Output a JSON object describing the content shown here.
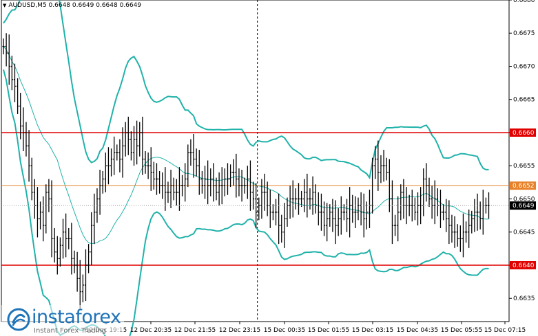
{
  "header": {
    "symbol_text": "AUDUSD,M5",
    "ohlc_text": "0.6648 0.6649 0.6648 0.6649"
  },
  "watermark": {
    "brand": "instaforex",
    "tagline": "Instant Forex Trading"
  },
  "colors": {
    "candle": "#000000",
    "bollinger": "#20b2aa",
    "support_resistance": "#e00000",
    "pivot": "#e8822a",
    "current_price_tag": "#000000",
    "grid_separator": "#000000"
  },
  "chart_data": {
    "type": "candlestick",
    "symbol": "AUDUSD",
    "timeframe": "M5",
    "ylim": [
      0.66315,
      0.668
    ],
    "y_ticks": [
      "0.6680",
      "0.6675",
      "0.6670",
      "0.6665",
      "0.6660",
      "0.6655",
      "0.6650",
      "0.6645",
      "0.6640",
      "0.6635"
    ],
    "x_ticks": [
      "12 Dec 19:15",
      "12 Dec 20:35",
      "12 Dec 21:55",
      "12 Dec 23:15",
      "15 Dec 00:35",
      "15 Dec 01:55",
      "15 Dec 03:15",
      "15 Dec 04:35",
      "15 Dec 05:55",
      "15 Dec 07:15"
    ],
    "levels": [
      {
        "value": 0.666,
        "label": "0.6660",
        "color": "#e00000"
      },
      {
        "value": 0.6652,
        "label": "0.6652",
        "color": "#e8822a"
      },
      {
        "value": 0.664,
        "label": "0.6640",
        "color": "#e00000"
      }
    ],
    "current_price": {
      "value": 0.6649,
      "label": "0.6649"
    },
    "session_break_bar": 89,
    "closes": [
      0.6673,
      0.6672,
      0.667,
      0.6668,
      0.6667,
      0.6664,
      0.6661,
      0.666,
      0.6658,
      0.6655,
      0.6651,
      0.6649,
      0.6647,
      0.6648,
      0.6646,
      0.6651,
      0.665,
      0.6644,
      0.6642,
      0.6641,
      0.6643,
      0.6645,
      0.6644,
      0.6644,
      0.6641,
      0.664,
      0.6638,
      0.6636,
      0.6637,
      0.664,
      0.6642,
      0.6646,
      0.6648,
      0.665,
      0.6652,
      0.6653,
      0.6655,
      0.6655,
      0.6656,
      0.6657,
      0.6657,
      0.6656,
      0.6658,
      0.666,
      0.6659,
      0.6657,
      0.6659,
      0.6658,
      0.666,
      0.6656,
      0.6655,
      0.6655,
      0.6654,
      0.6653,
      0.6653,
      0.6652,
      0.6652,
      0.6651,
      0.6651,
      0.6652,
      0.6651,
      0.6651,
      0.6652,
      0.6652,
      0.6653,
      0.6657,
      0.6657,
      0.6656,
      0.6655,
      0.6653,
      0.6652,
      0.6653,
      0.6652,
      0.6653,
      0.6652,
      0.6651,
      0.6652,
      0.6652,
      0.6653,
      0.6653,
      0.6654,
      0.6654,
      0.6653,
      0.6652,
      0.6652,
      0.6652,
      0.6653,
      0.6651,
      0.665,
      0.6648,
      0.6649,
      0.6651,
      0.6651,
      0.6649,
      0.6648,
      0.6648,
      0.6648,
      0.6646,
      0.6645,
      0.6647,
      0.6649,
      0.665,
      0.665,
      0.665,
      0.665,
      0.665,
      0.6651,
      0.665,
      0.665,
      0.6651,
      0.6649,
      0.6648,
      0.6648,
      0.6646,
      0.6647,
      0.6648,
      0.6647,
      0.6646,
      0.6647,
      0.6648,
      0.6648,
      0.6647,
      0.6649,
      0.6648,
      0.6648,
      0.6649,
      0.6648,
      0.6647,
      0.6648,
      0.6649,
      0.6655,
      0.6656,
      0.6654,
      0.6655,
      0.6655,
      0.6654,
      0.665,
      0.6646,
      0.6646,
      0.6648,
      0.6651,
      0.6649,
      0.6649,
      0.6649,
      0.6649,
      0.6648,
      0.6649,
      0.6649,
      0.6653,
      0.6652,
      0.665,
      0.6649,
      0.665,
      0.6649,
      0.6648,
      0.6648,
      0.6647,
      0.6646,
      0.6645,
      0.6645,
      0.6644,
      0.6644,
      0.6645,
      0.6645,
      0.6646,
      0.6647,
      0.6648,
      0.6648,
      0.6647,
      0.6649,
      0.6649,
      0.6649
    ]
  }
}
